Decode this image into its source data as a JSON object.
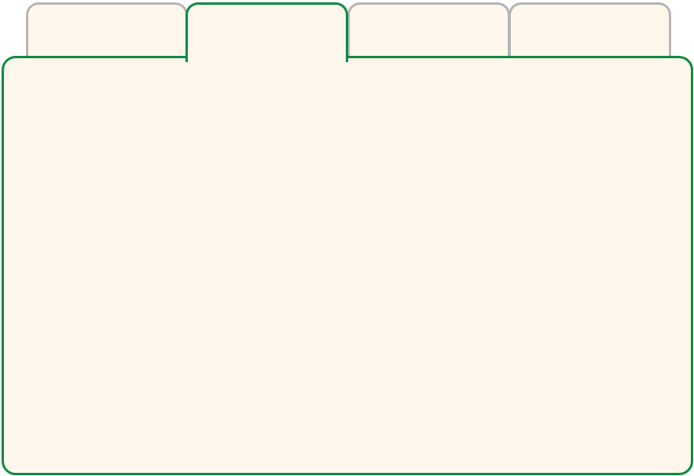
{
  "tabs": [
    {
      "label": ""
    },
    {
      "label": ""
    },
    {
      "label": ""
    },
    {
      "label": ""
    }
  ],
  "active_tab_index": 1,
  "colors": {
    "active_border": "#0e8a40",
    "inactive_border": "#b5b5b5",
    "surface": "#fff7ec"
  },
  "panel": {
    "content": ""
  }
}
